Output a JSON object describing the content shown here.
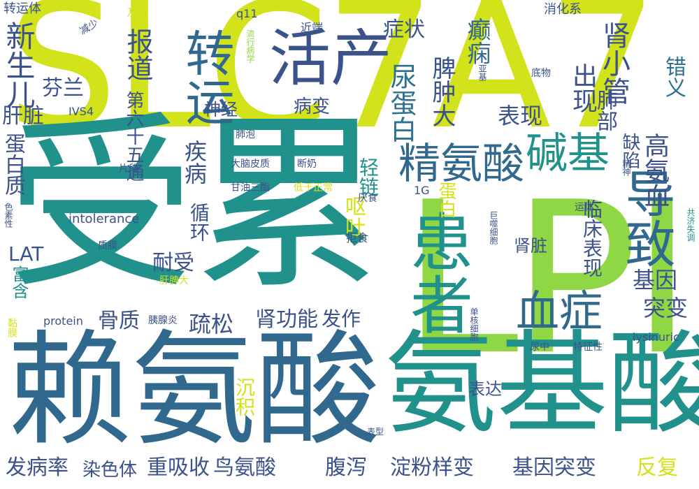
{
  "words": [
    {
      "text": "SLC7A7",
      "color": "#d2e21b"
    },
    {
      "text": "受累",
      "color": "#21918c"
    },
    {
      "text": "LPI",
      "color": "#8fd744"
    },
    {
      "text": "赖氨酸",
      "color": "#31688e"
    },
    {
      "text": "氨基酸",
      "color": "#21918c"
    },
    {
      "text": "患者",
      "color": "#21918c"
    },
    {
      "text": "活产",
      "color": "#3b528b"
    },
    {
      "text": "转运",
      "color": "#31688e"
    },
    {
      "text": "导致",
      "color": "#31688e"
    },
    {
      "text": "血症",
      "color": "#31688e"
    },
    {
      "text": "精氨酸",
      "color": "#31688e"
    },
    {
      "text": "碱基",
      "color": "#21918c"
    },
    {
      "text": "新生儿",
      "color": "#3b528b"
    },
    {
      "text": "肾小管",
      "color": "#3b528b"
    },
    {
      "text": "尿蛋白",
      "color": "#2c728e"
    },
    {
      "text": "报道",
      "color": "#3b528b"
    },
    {
      "text": "出现",
      "color": "#3b528b"
    },
    {
      "text": "高氨血",
      "color": "#3b528b"
    },
    {
      "text": "癫痫",
      "color": "#31688e"
    },
    {
      "text": "脾肿大",
      "color": "#3b528b"
    },
    {
      "text": "表现",
      "color": "#3b528b"
    },
    {
      "text": "肺部",
      "color": "#3b528b"
    },
    {
      "text": "错义",
      "color": "#2c728e"
    },
    {
      "text": "症状",
      "color": "#3b528b"
    },
    {
      "text": "芬兰",
      "color": "#3b528b"
    },
    {
      "text": "肝脏",
      "color": "#3b528b"
    },
    {
      "text": "蛋白质",
      "color": "#3b528b"
    },
    {
      "text": "第六十五通",
      "color": "#3b528b"
    },
    {
      "text": "疾病",
      "color": "#3b528b"
    },
    {
      "text": "轻链",
      "color": "#21918c"
    },
    {
      "text": "缺陷",
      "color": "#3b528b"
    },
    {
      "text": "病变",
      "color": "#3b528b"
    },
    {
      "text": "神经",
      "color": "#3b528b"
    },
    {
      "text": "蛋白",
      "color": "#d2e21b"
    },
    {
      "text": "循环",
      "color": "#3b528b"
    },
    {
      "text": "呕吐",
      "color": "#d2e21b"
    },
    {
      "text": "临床表现",
      "color": "#3b528b"
    },
    {
      "text": "基因",
      "color": "#3b528b"
    },
    {
      "text": "突变",
      "color": "#3b528b"
    },
    {
      "text": "耐受",
      "color": "#3b528b"
    },
    {
      "text": "LAT",
      "color": "#3b528b"
    },
    {
      "text": "富含",
      "color": "#21918c"
    },
    {
      "text": "肾脏",
      "color": "#3b528b"
    },
    {
      "text": "骨质",
      "color": "#3b528b"
    },
    {
      "text": "疏松",
      "color": "#3b528b"
    },
    {
      "text": "肾功能",
      "color": "#3b528b"
    },
    {
      "text": "发作",
      "color": "#3b528b"
    },
    {
      "text": "表达",
      "color": "#3b528b"
    },
    {
      "text": "沉积",
      "color": "#d2e21b"
    },
    {
      "text": "发病率",
      "color": "#3b528b"
    },
    {
      "text": "染色体",
      "color": "#3b528b"
    },
    {
      "text": "重吸收",
      "color": "#3b528b"
    },
    {
      "text": "鸟氨酸",
      "color": "#3b528b"
    },
    {
      "text": "腹泻",
      "color": "#3b528b"
    },
    {
      "text": "淀粉样变",
      "color": "#3b528b"
    },
    {
      "text": "基因突变",
      "color": "#3b528b"
    },
    {
      "text": "反复",
      "color": "#d2e21b"
    },
    {
      "text": "转运体",
      "color": "#3b528b"
    },
    {
      "text": "及嗪",
      "color": "#d2e21b"
    },
    {
      "text": "q11",
      "color": "#3b528b"
    },
    {
      "text": "消化系",
      "color": "#3b528b"
    },
    {
      "text": "减少",
      "color": "#3b528b"
    },
    {
      "text": "近端",
      "color": "#3b528b"
    },
    {
      "text": "流行病学",
      "color": "#8fd744"
    },
    {
      "text": "亚基",
      "color": "#3b528b"
    },
    {
      "text": "底物",
      "color": "#3b528b"
    },
    {
      "text": "IVS4",
      "color": "#3b528b"
    },
    {
      "text": "肺泡",
      "color": "#3b528b"
    },
    {
      "text": "片段",
      "color": "#3b528b"
    },
    {
      "text": "大脑皮质",
      "color": "#3b528b"
    },
    {
      "text": "断奶",
      "color": "#3b528b"
    },
    {
      "text": "精神",
      "color": "#3b528b"
    },
    {
      "text": "甘油三酯",
      "color": "#3b528b"
    },
    {
      "text": "低于正常",
      "color": "#d2e21b"
    },
    {
      "text": "1G",
      "color": "#3b528b"
    },
    {
      "text": "厌食",
      "color": "#3b528b"
    },
    {
      "text": "运体",
      "color": "#3b528b"
    },
    {
      "text": "intolerance",
      "color": "#3b528b"
    },
    {
      "text": "拒食",
      "color": "#3b528b"
    },
    {
      "text": "巨噬细胞",
      "color": "#3b528b"
    },
    {
      "text": "共济失调",
      "color": "#21918c"
    },
    {
      "text": "色素性",
      "color": "#3b528b"
    },
    {
      "text": "质膜",
      "color": "#3b528b"
    },
    {
      "text": "肝脾大",
      "color": "#d2e21b"
    },
    {
      "text": "黏膜",
      "color": "#d2e21b"
    },
    {
      "text": "protein",
      "color": "#3b528b"
    },
    {
      "text": "胰腺炎",
      "color": "#3b528b"
    },
    {
      "text": "单核细胞",
      "color": "#3b528b"
    },
    {
      "text": "lysinuric",
      "color": "#3b528b"
    },
    {
      "text": "尿中",
      "color": "#3b528b"
    },
    {
      "text": "特征性",
      "color": "#3b528b"
    },
    {
      "text": "表型",
      "color": "#3b528b"
    }
  ]
}
